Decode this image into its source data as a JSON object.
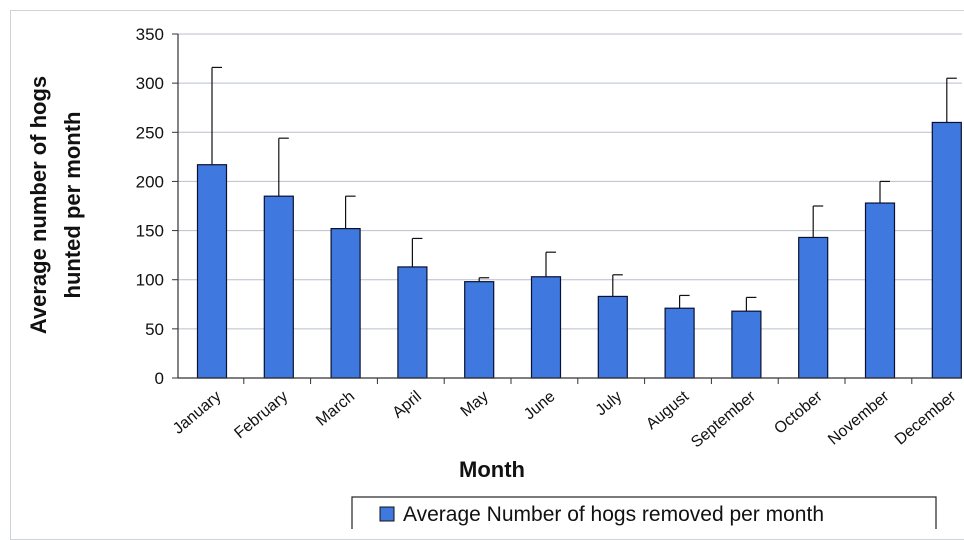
{
  "chart_data": {
    "type": "bar",
    "categories": [
      "January",
      "February",
      "March",
      "April",
      "May",
      "June",
      "July",
      "August",
      "September",
      "October",
      "November",
      "December"
    ],
    "series": [
      {
        "name": "Average Number of hogs removed per month",
        "values": [
          217,
          185,
          152,
          113,
          98,
          103,
          83,
          71,
          68,
          143,
          178,
          260
        ],
        "error_upper": [
          316,
          244,
          185,
          142,
          102,
          128,
          105,
          84,
          82,
          175,
          200,
          305
        ],
        "color": "#3f79e0"
      }
    ],
    "xlabel": "Month",
    "ylabel_line1": "Average number of hogs",
    "ylabel_line2": "hunted per month",
    "ylim": [
      0,
      350
    ],
    "yticks": [
      0,
      50,
      100,
      150,
      200,
      250,
      300,
      350
    ],
    "grid": true,
    "legend": "bottom-right"
  }
}
